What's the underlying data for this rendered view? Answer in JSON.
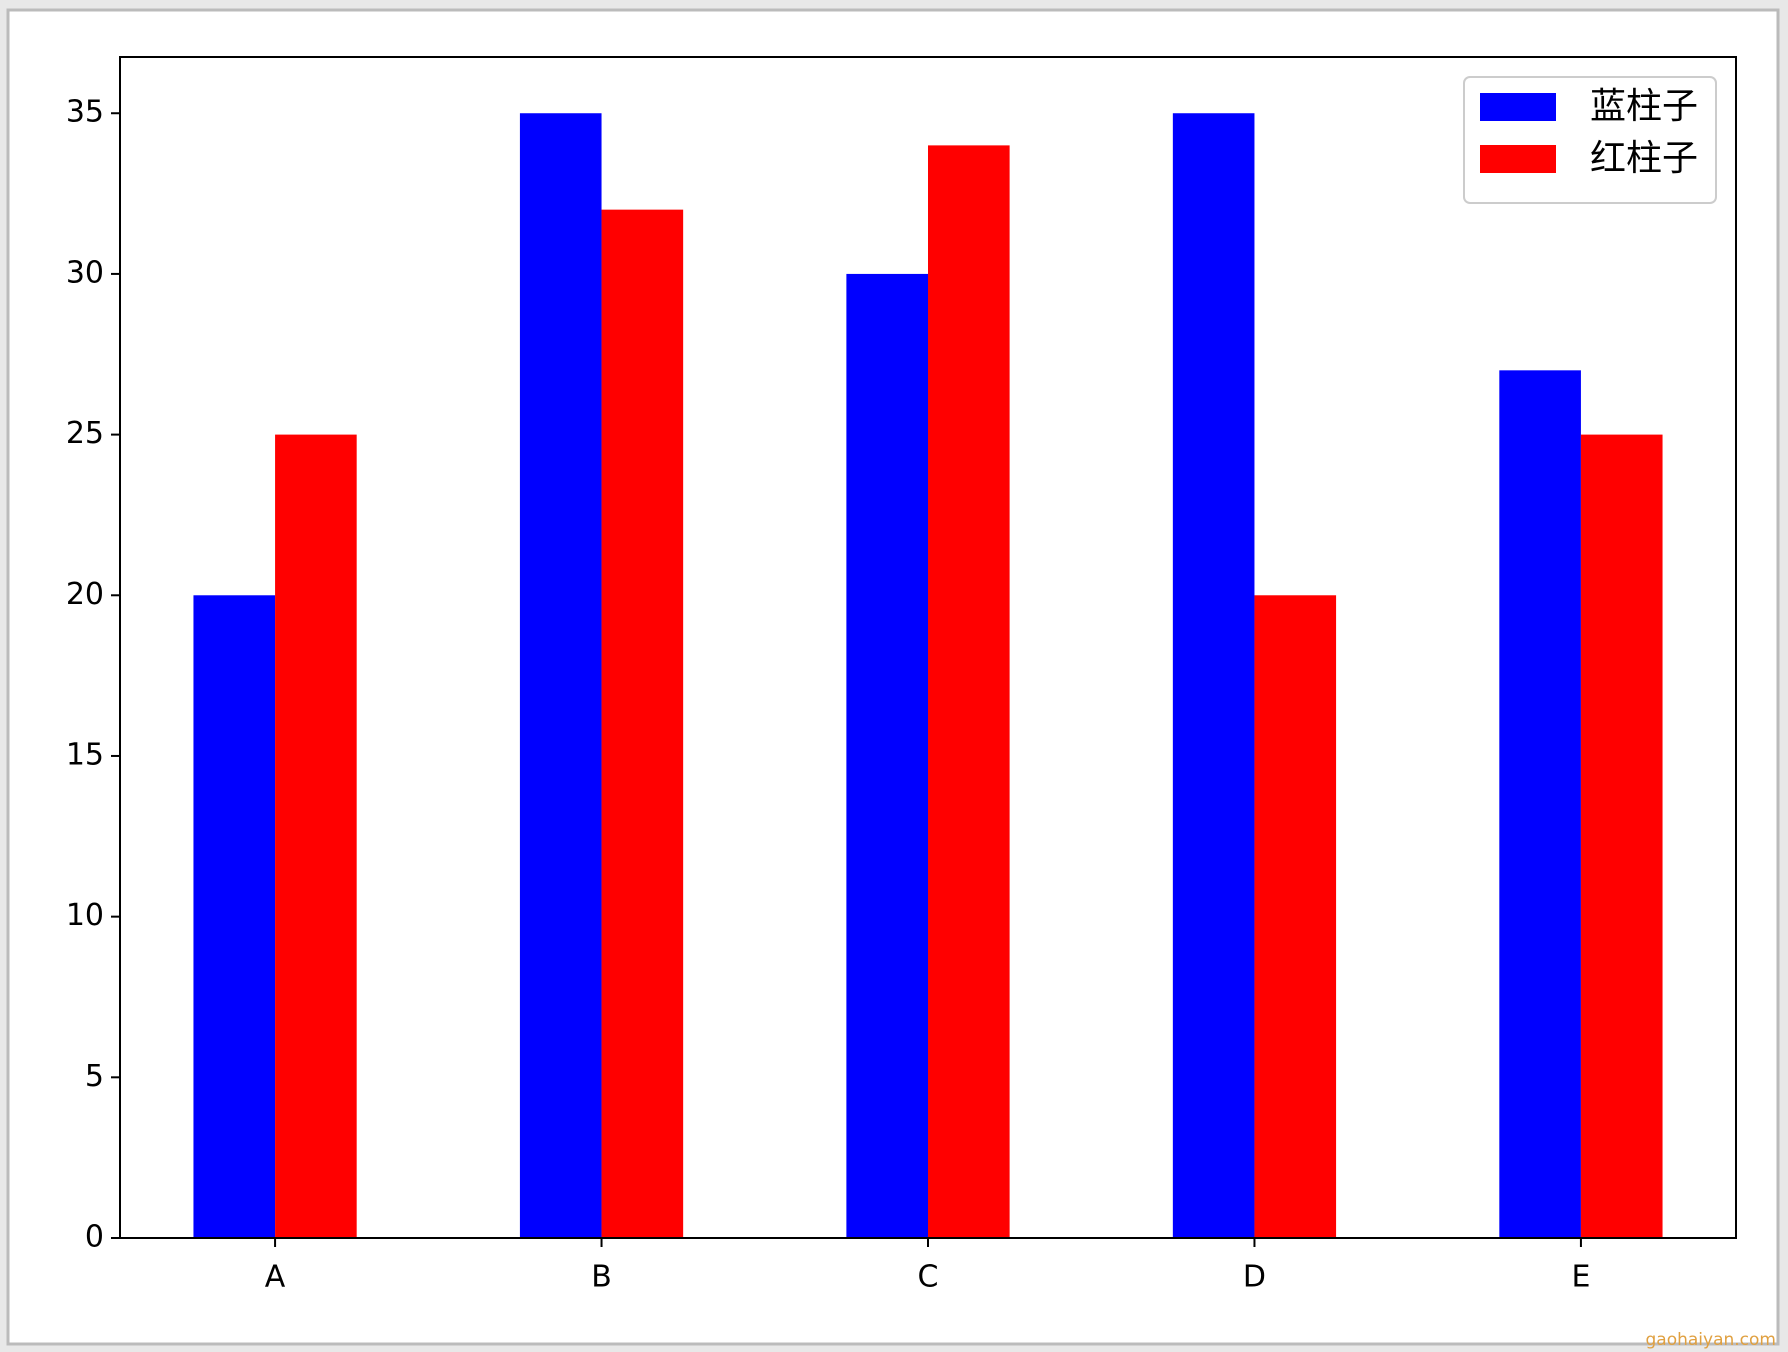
{
  "chart_data": {
    "type": "bar",
    "categories": [
      "A",
      "B",
      "C",
      "D",
      "E"
    ],
    "series": [
      {
        "name": "蓝柱子",
        "color": "#0000ff",
        "values": [
          20,
          35,
          30,
          35,
          27
        ]
      },
      {
        "name": "红柱子",
        "color": "#ff0000",
        "values": [
          25,
          32,
          34,
          20,
          25
        ]
      }
    ],
    "ylim": [
      0,
      36.75
    ],
    "yticks": [
      0,
      5,
      10,
      15,
      20,
      25,
      30,
      35
    ],
    "legend": "upper right",
    "grid": false
  },
  "watermark": "gaohaiyan.com"
}
